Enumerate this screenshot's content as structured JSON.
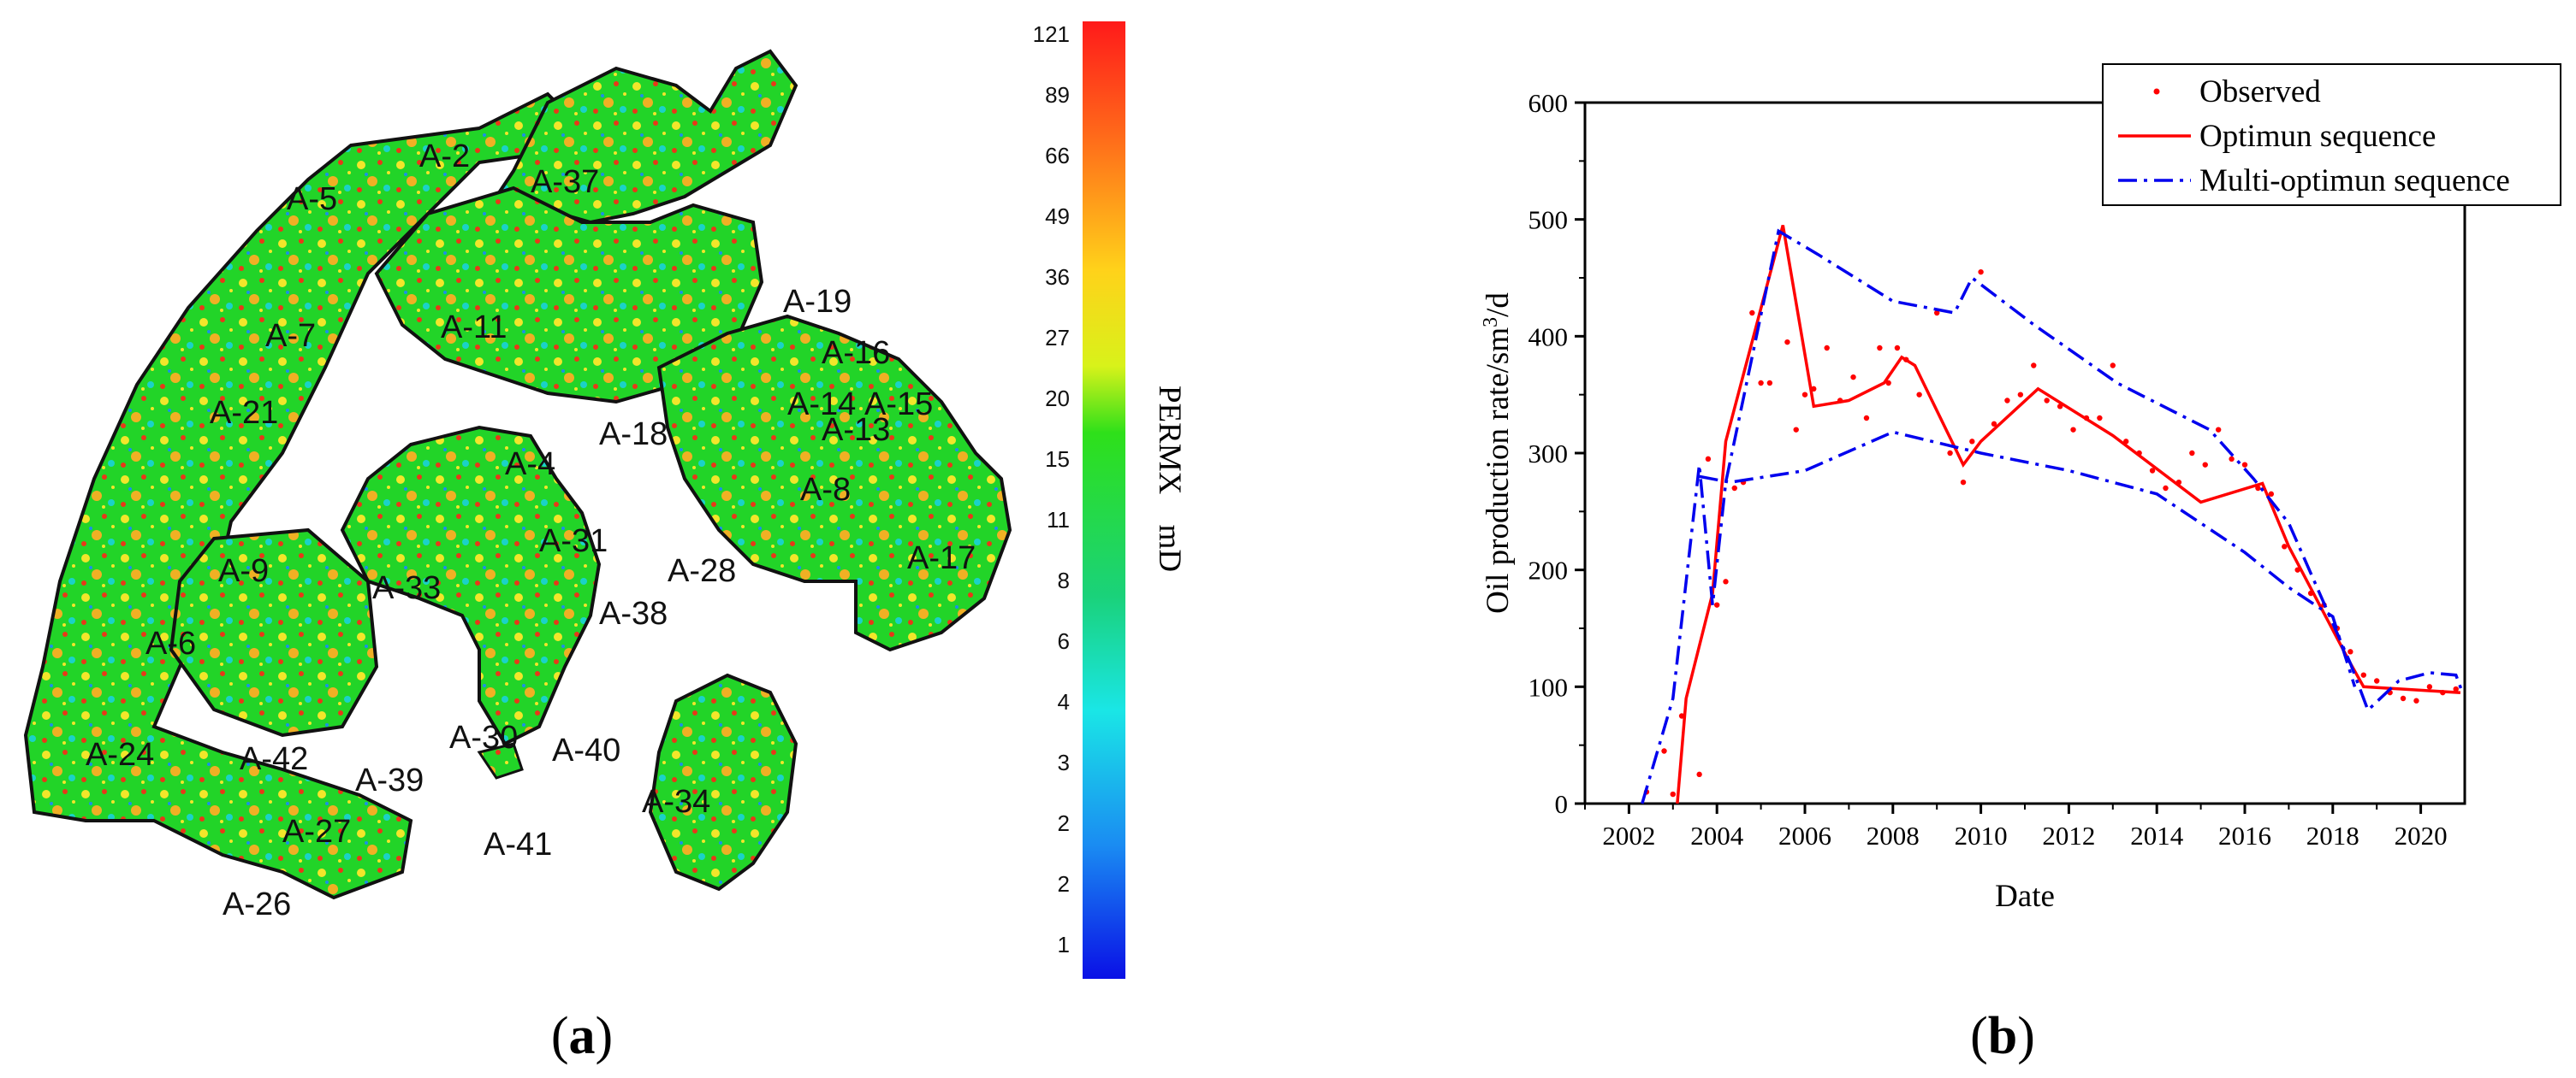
{
  "colors": {
    "observed": "#ff0000",
    "optimum": "#ff0000",
    "multi_optimum": "#0000ee",
    "map_base": "#22d428",
    "map_high": "#e83818",
    "map_mid": "#f2e62a",
    "map_edge": "#111111"
  },
  "panel_a": {
    "label_letter": "a",
    "colorbar": {
      "title": "PERMX",
      "unit": "mD",
      "ticks": [
        "121",
        "89",
        "66",
        "49",
        "36",
        "27",
        "20",
        "15",
        "11",
        "8",
        "6",
        "4",
        "3",
        "2",
        "2",
        "1"
      ]
    },
    "wells": [
      "A-2",
      "A-37",
      "A-5",
      "A-7",
      "A-11",
      "A-19",
      "A-16",
      "A-21",
      "A-14",
      "A-15",
      "A-13",
      "A-18",
      "A-4",
      "A-8",
      "A-31",
      "A-33",
      "A-28",
      "A-17",
      "A-9",
      "A-38",
      "A-6",
      "A-30",
      "A-40",
      "A-24",
      "A-42",
      "A-39",
      "A-34",
      "A-27",
      "A-41",
      "A-26"
    ]
  },
  "panel_b": {
    "label_letter": "b",
    "chart_data": {
      "type": "line",
      "xlabel": "Date",
      "ylabel": "Oil production rate/sm",
      "ylabel_sup": "3",
      "ylabel_tail": "/d",
      "xlim": [
        2001,
        2021
      ],
      "ylim": [
        0,
        600
      ],
      "xticks": [
        2002,
        2004,
        2006,
        2008,
        2010,
        2012,
        2014,
        2016,
        2018,
        2020
      ],
      "yticks": [
        0,
        100,
        200,
        300,
        400,
        500,
        600
      ],
      "legend_position": "top-right",
      "series": [
        {
          "name": "Observed",
          "style": "points",
          "x": [
            2002.4,
            2002.8,
            2003.0,
            2003.2,
            2003.6,
            2003.8,
            2004.0,
            2004.2,
            2004.4,
            2004.6,
            2004.8,
            2005.0,
            2005.2,
            2005.6,
            2005.8,
            2006.0,
            2006.2,
            2006.5,
            2006.8,
            2007.1,
            2007.4,
            2007.7,
            2007.9,
            2008.1,
            2008.3,
            2008.6,
            2009.0,
            2009.3,
            2009.6,
            2009.8,
            2010.0,
            2010.3,
            2010.6,
            2010.9,
            2011.2,
            2011.5,
            2011.8,
            2012.1,
            2012.4,
            2012.7,
            2013.0,
            2013.3,
            2013.6,
            2013.9,
            2014.2,
            2014.5,
            2014.8,
            2015.1,
            2015.4,
            2015.7,
            2016.0,
            2016.3,
            2016.6,
            2016.9,
            2017.2,
            2017.5,
            2017.8,
            2018.1,
            2018.4,
            2018.7,
            2019.0,
            2019.3,
            2019.6,
            2019.9,
            2020.2,
            2020.5,
            2020.8
          ],
          "y": [
            10,
            45,
            8,
            75,
            25,
            295,
            170,
            190,
            270,
            275,
            420,
            360,
            360,
            395,
            320,
            350,
            355,
            390,
            345,
            365,
            330,
            390,
            360,
            390,
            380,
            350,
            420,
            300,
            275,
            310,
            455,
            325,
            345,
            350,
            375,
            345,
            340,
            320,
            330,
            330,
            375,
            310,
            300,
            285,
            270,
            275,
            300,
            290,
            320,
            295,
            290,
            270,
            265,
            220,
            200,
            180,
            170,
            150,
            130,
            110,
            105,
            95,
            90,
            88,
            100,
            95,
            98
          ]
        },
        {
          "name": "Optimun sequence",
          "style": "solid",
          "x": [
            2003.1,
            2003.3,
            2003.9,
            2004.2,
            2005.5,
            2006.2,
            2007.0,
            2007.8,
            2008.2,
            2008.5,
            2009.6,
            2010.0,
            2011.3,
            2013.0,
            2015.0,
            2016.4,
            2017.0,
            2018.4,
            2018.7,
            2020.9
          ],
          "y": [
            0,
            90,
            180,
            310,
            495,
            340,
            345,
            360,
            382,
            375,
            290,
            310,
            355,
            315,
            258,
            274,
            220,
            120,
            100,
            95
          ]
        },
        {
          "name": "Multi-optimun sequence",
          "style": "dashdot",
          "x": [
            2002.3,
            2003.0,
            2003.6,
            2003.9,
            2004.2,
            2005.4,
            2006.3,
            2008.0,
            2009.4,
            2009.8,
            2011.2,
            2013.1,
            2015.2,
            2016.2,
            2017.0,
            2018.4,
            2018.8,
            2019.5,
            2020.2,
            2020.8,
            2020.95
          ],
          "y": [
            0,
            90,
            290,
            170,
            275,
            490,
            470,
            430,
            420,
            450,
            410,
            360,
            320,
            278,
            240,
            120,
            80,
            105,
            112,
            110,
            95
          ],
          "x2": [
            2003.6,
            2004.3,
            2006.0,
            2008.0,
            2010.0,
            2012.0,
            2014.0,
            2016.0,
            2017.0,
            2018.0,
            2018.5
          ],
          "y2": [
            280,
            275,
            285,
            318,
            300,
            285,
            265,
            215,
            185,
            160,
            100
          ]
        }
      ]
    }
  }
}
